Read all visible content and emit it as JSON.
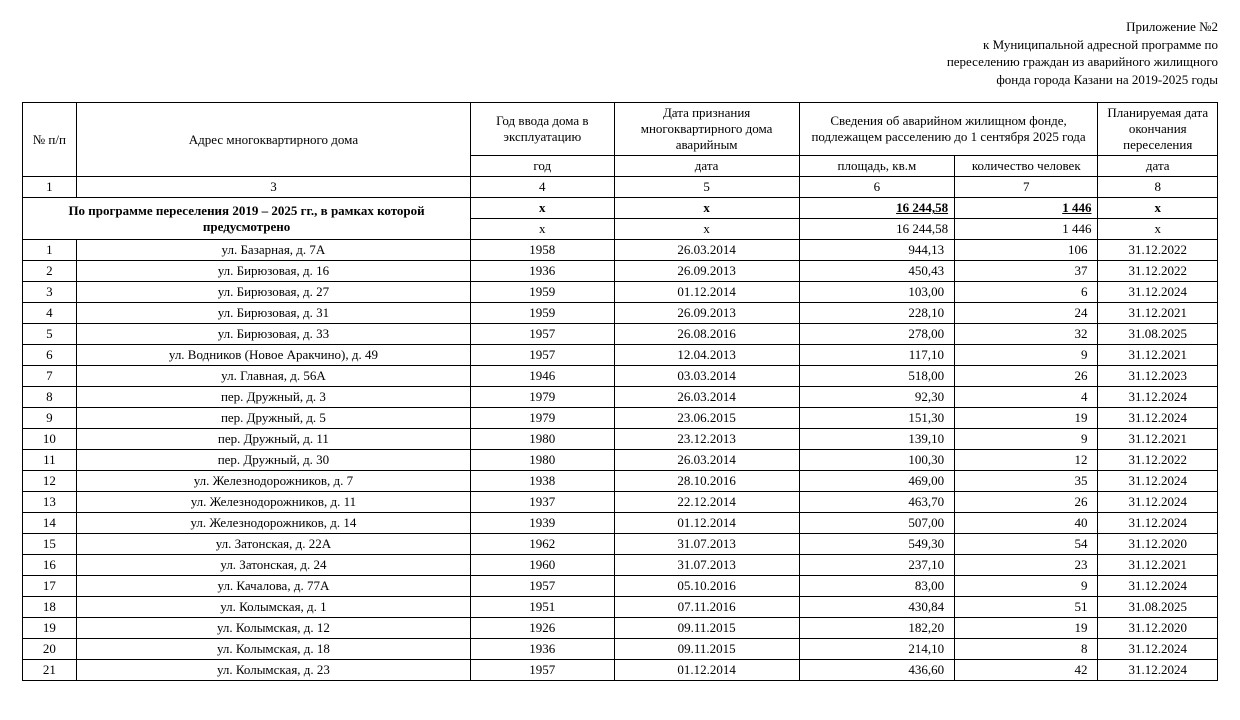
{
  "header": {
    "line1": "Приложение №2",
    "line2": "к Муниципальной адресной программе по",
    "line3": "переселению граждан из аварийного жилищного",
    "line4": "фонда города Казани на 2019-2025 годы"
  },
  "table": {
    "headers": {
      "num": "№ п/п",
      "address": "Адрес многоквартирного дома",
      "year_intro": "Год ввода дома в эксплуатацию",
      "date_recog": "Дата признания многоквартирного дома аварийным",
      "emergency_info": "Сведения об аварийном жилищном фонде, подлежащем расселению до 1 сентября 2025 года",
      "plan_end": "Планируемая дата окончания переселения",
      "sub_year": "год",
      "sub_date": "дата",
      "sub_area": "площадь, кв.м",
      "sub_people": "количество человек",
      "sub_plan": "дата"
    },
    "number_row": [
      "1",
      "3",
      "4",
      "5",
      "6",
      "7",
      "8"
    ],
    "summary_label": "По программе переселения 2019 – 2025 гг., в рамках которой предусмотрено",
    "summary1": {
      "year": "x",
      "date": "x",
      "area": "16 244,58",
      "people": "1 446",
      "plan": "x"
    },
    "summary2": {
      "year": "x",
      "date": "x",
      "area": "16 244,58",
      "people": "1 446",
      "plan": "x"
    },
    "rows": [
      {
        "n": "1",
        "addr": "ул. Базарная, д. 7А",
        "year": "1958",
        "date": "26.03.2014",
        "area": "944,13",
        "people": "106",
        "plan": "31.12.2022"
      },
      {
        "n": "2",
        "addr": "ул. Бирюзовая, д. 16",
        "year": "1936",
        "date": "26.09.2013",
        "area": "450,43",
        "people": "37",
        "plan": "31.12.2022"
      },
      {
        "n": "3",
        "addr": "ул. Бирюзовая, д. 27",
        "year": "1959",
        "date": "01.12.2014",
        "area": "103,00",
        "people": "6",
        "plan": "31.12.2024"
      },
      {
        "n": "4",
        "addr": "ул. Бирюзовая, д. 31",
        "year": "1959",
        "date": "26.09.2013",
        "area": "228,10",
        "people": "24",
        "plan": "31.12.2021"
      },
      {
        "n": "5",
        "addr": "ул. Бирюзовая, д. 33",
        "year": "1957",
        "date": "26.08.2016",
        "area": "278,00",
        "people": "32",
        "plan": "31.08.2025"
      },
      {
        "n": "6",
        "addr": "ул. Водников (Новое Аракчино), д. 49",
        "year": "1957",
        "date": "12.04.2013",
        "area": "117,10",
        "people": "9",
        "plan": "31.12.2021"
      },
      {
        "n": "7",
        "addr": "ул. Главная, д. 56А",
        "year": "1946",
        "date": "03.03.2014",
        "area": "518,00",
        "people": "26",
        "plan": "31.12.2023"
      },
      {
        "n": "8",
        "addr": "пер. Дружный, д. 3",
        "year": "1979",
        "date": "26.03.2014",
        "area": "92,30",
        "people": "4",
        "plan": "31.12.2024"
      },
      {
        "n": "9",
        "addr": "пер. Дружный, д. 5",
        "year": "1979",
        "date": "23.06.2015",
        "area": "151,30",
        "people": "19",
        "plan": "31.12.2024"
      },
      {
        "n": "10",
        "addr": "пер. Дружный, д. 11",
        "year": "1980",
        "date": "23.12.2013",
        "area": "139,10",
        "people": "9",
        "plan": "31.12.2021"
      },
      {
        "n": "11",
        "addr": "пер. Дружный, д. 30",
        "year": "1980",
        "date": "26.03.2014",
        "area": "100,30",
        "people": "12",
        "plan": "31.12.2022"
      },
      {
        "n": "12",
        "addr": "ул. Железнодорожников, д. 7",
        "year": "1938",
        "date": "28.10.2016",
        "area": "469,00",
        "people": "35",
        "plan": "31.12.2024"
      },
      {
        "n": "13",
        "addr": "ул. Железнодорожников, д. 11",
        "year": "1937",
        "date": "22.12.2014",
        "area": "463,70",
        "people": "26",
        "plan": "31.12.2024"
      },
      {
        "n": "14",
        "addr": "ул. Железнодорожников, д. 14",
        "year": "1939",
        "date": "01.12.2014",
        "area": "507,00",
        "people": "40",
        "plan": "31.12.2024"
      },
      {
        "n": "15",
        "addr": "ул. Затонская, д. 22А",
        "year": "1962",
        "date": "31.07.2013",
        "area": "549,30",
        "people": "54",
        "plan": "31.12.2020"
      },
      {
        "n": "16",
        "addr": "ул. Затонская, д. 24",
        "year": "1960",
        "date": "31.07.2013",
        "area": "237,10",
        "people": "23",
        "plan": "31.12.2021"
      },
      {
        "n": "17",
        "addr": "ул. Качалова, д. 77А",
        "year": "1957",
        "date": "05.10.2016",
        "area": "83,00",
        "people": "9",
        "plan": "31.12.2024"
      },
      {
        "n": "18",
        "addr": "ул. Колымская, д. 1",
        "year": "1951",
        "date": "07.11.2016",
        "area": "430,84",
        "people": "51",
        "plan": "31.08.2025"
      },
      {
        "n": "19",
        "addr": "ул. Колымская, д. 12",
        "year": "1926",
        "date": "09.11.2015",
        "area": "182,20",
        "people": "19",
        "plan": "31.12.2020"
      },
      {
        "n": "20",
        "addr": "ул. Колымская, д. 18",
        "year": "1936",
        "date": "09.11.2015",
        "area": "214,10",
        "people": "8",
        "plan": "31.12.2024"
      },
      {
        "n": "21",
        "addr": "ул. Колымская, д. 23",
        "year": "1957",
        "date": "01.12.2014",
        "area": "436,60",
        "people": "42",
        "plan": "31.12.2024"
      }
    ]
  }
}
